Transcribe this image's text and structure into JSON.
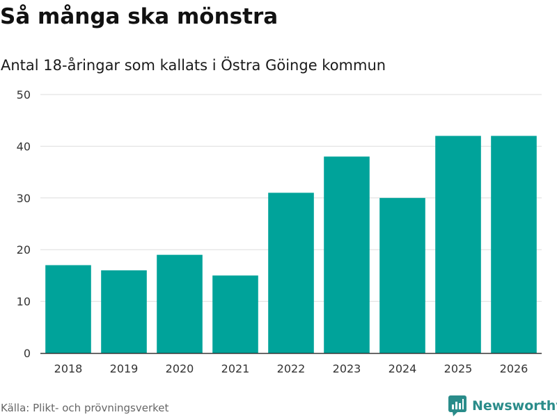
{
  "header": {
    "title": "Så många ska mönstra",
    "subtitle": "Antal 18-åringar som kallats i Östra Göinge kommun"
  },
  "footer": {
    "source": "Källa: Plikt- och prövningsverket",
    "brand": "Newsworthy",
    "brand_icon": "newsworthy-logo-icon"
  },
  "colors": {
    "bar": "#00a39a",
    "grid": "#dddddd",
    "axis": "#333333",
    "brand": "#2a8c8a"
  },
  "chart_data": {
    "type": "bar",
    "title": "Så många ska mönstra",
    "subtitle": "Antal 18-åringar som kallats i Östra Göinge kommun",
    "xlabel": "",
    "ylabel": "",
    "categories": [
      "2018",
      "2019",
      "2020",
      "2021",
      "2022",
      "2023",
      "2024",
      "2025",
      "2026"
    ],
    "values": [
      17,
      16,
      19,
      15,
      31,
      38,
      30,
      42,
      42
    ],
    "ylim": [
      0,
      50
    ],
    "yticks": [
      0,
      10,
      20,
      30,
      40,
      50
    ],
    "grid": true,
    "legend": "none"
  }
}
